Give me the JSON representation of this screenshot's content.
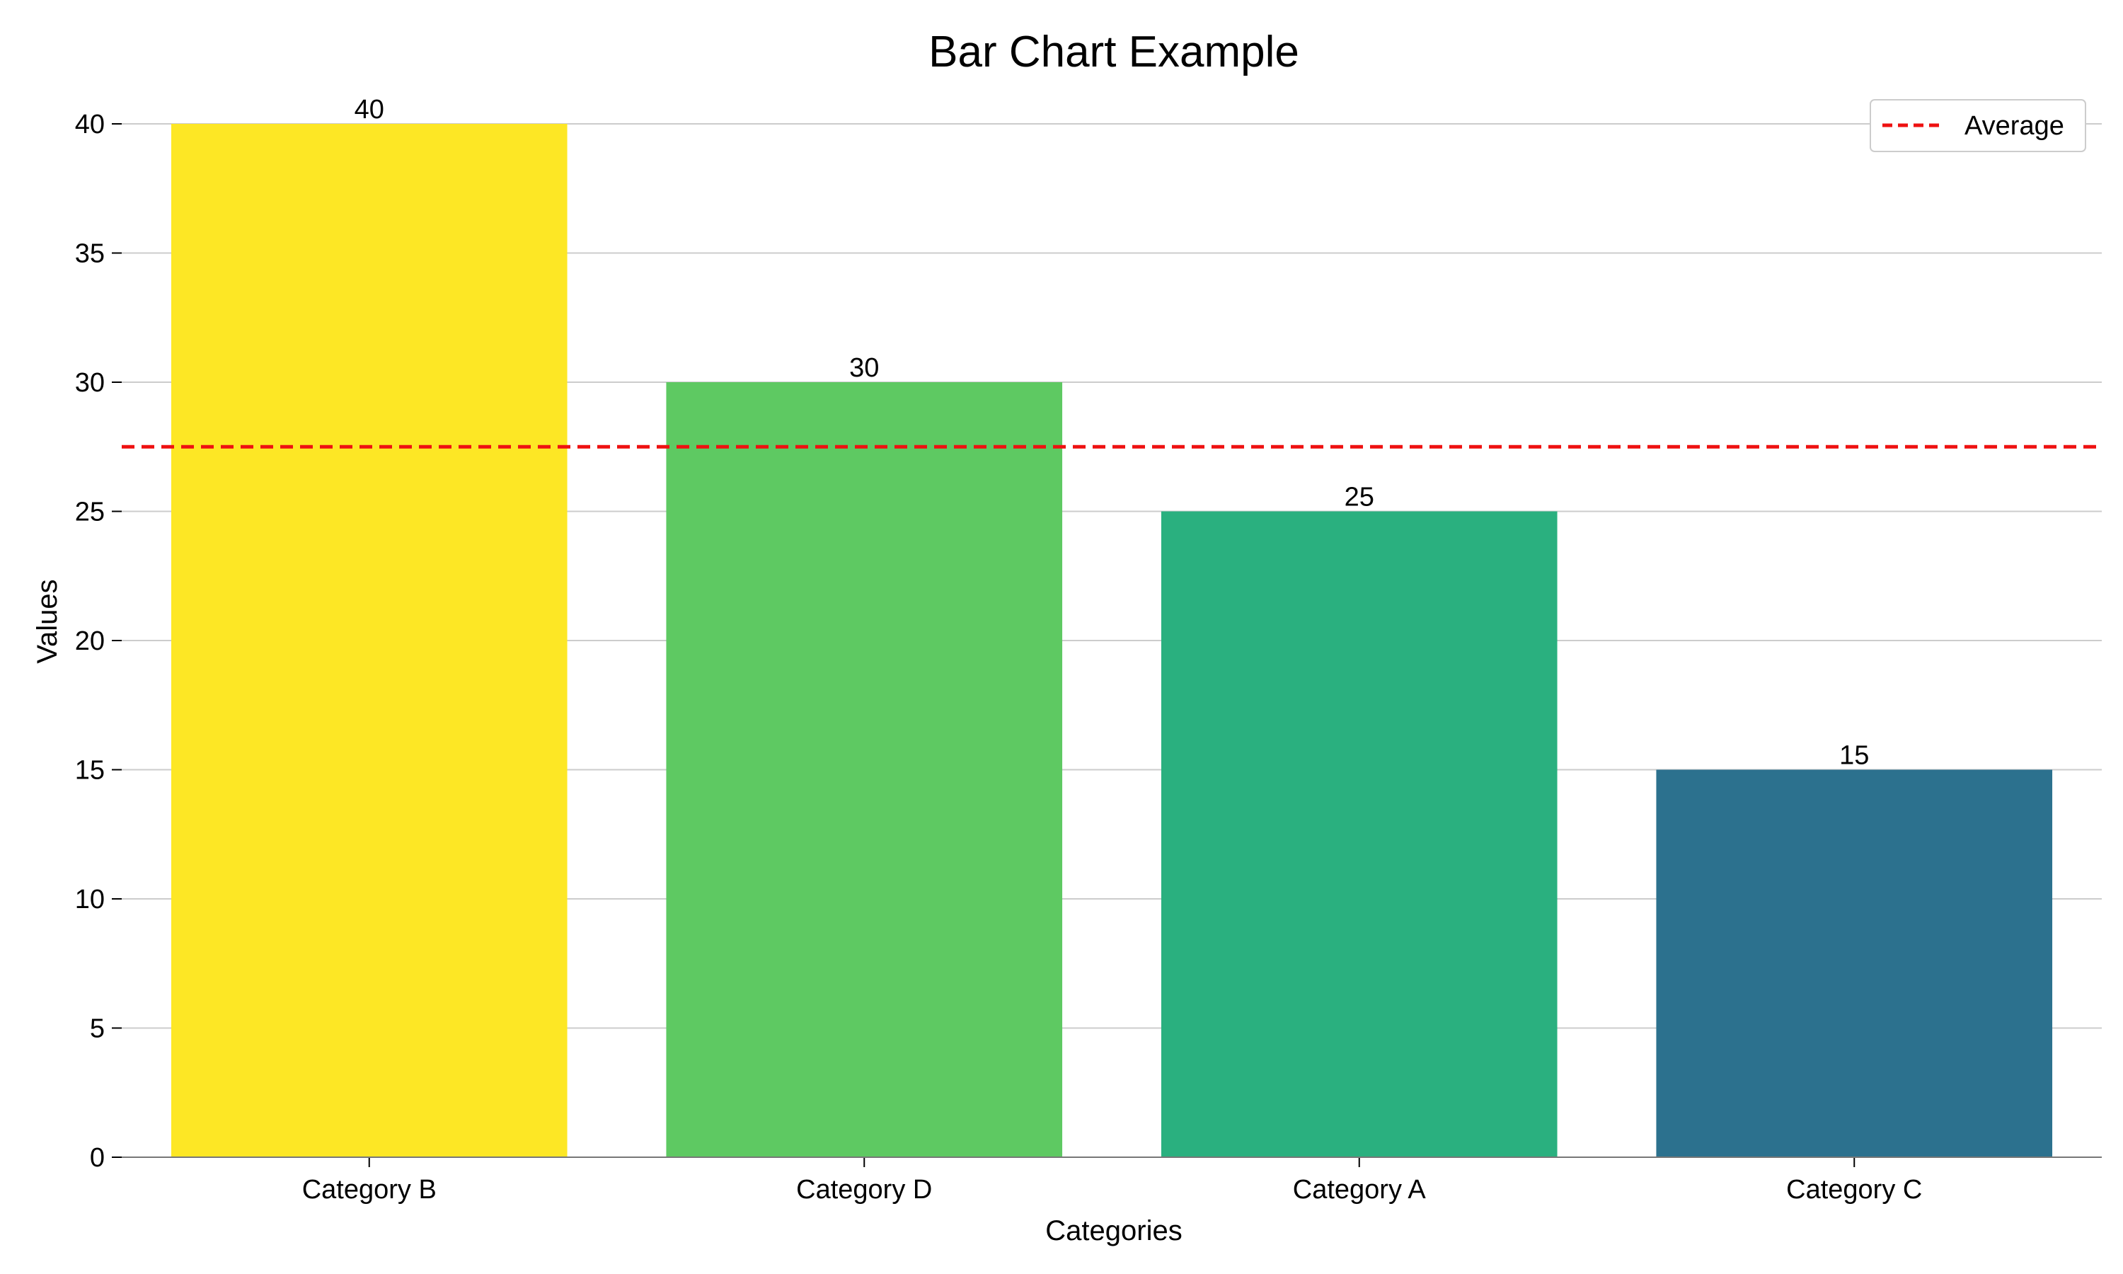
{
  "chart_data": {
    "type": "bar",
    "title": "Bar Chart Example",
    "xlabel": "Categories",
    "ylabel": "Values",
    "categories": [
      "Category B",
      "Category D",
      "Category A",
      "Category C"
    ],
    "values": [
      40,
      30,
      25,
      15
    ],
    "bar_colors": [
      "#fde725",
      "#5ec962",
      "#2ab07f",
      "#2c718e"
    ],
    "data_labels": [
      "40",
      "30",
      "25",
      "15"
    ],
    "ylim": [
      0,
      40
    ],
    "yticks": [
      0,
      5,
      10,
      15,
      20,
      25,
      30,
      35,
      40
    ],
    "ytick_labels": [
      "0",
      "5",
      "10",
      "15",
      "20",
      "25",
      "30",
      "35",
      "40"
    ],
    "average": {
      "name": "Average",
      "value": 27.5,
      "color": "#ee1111",
      "style": "dashed"
    },
    "grid": {
      "axis": "y",
      "on": true,
      "color": "#cccccc"
    },
    "legend": {
      "placement": "top-right",
      "entries": [
        "Average"
      ]
    }
  }
}
